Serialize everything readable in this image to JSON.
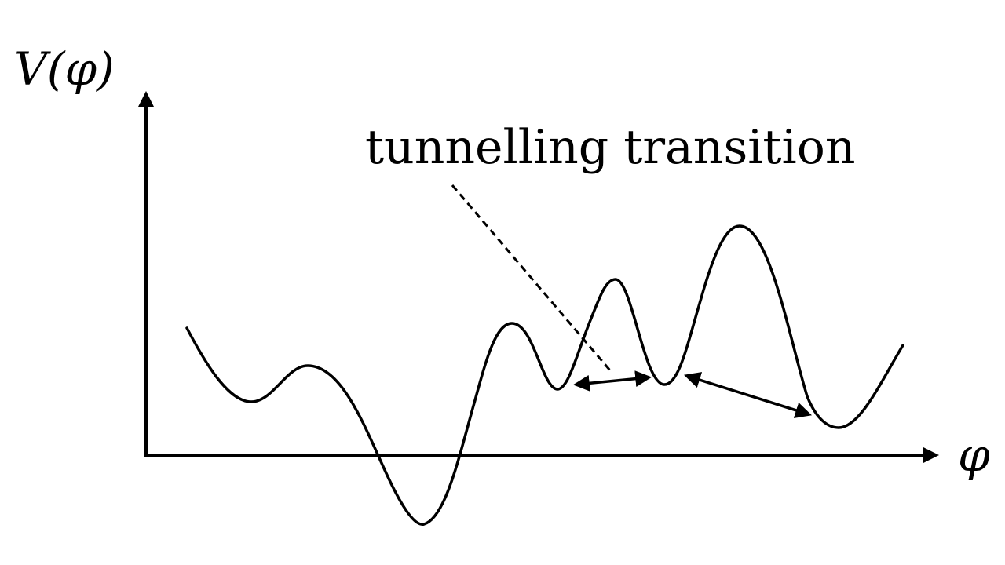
{
  "labels": {
    "y_axis": "V(φ)",
    "x_axis": "φ",
    "annotation": "tunnelling transition"
  },
  "colors": {
    "ink": "#000000",
    "background": "#ffffff"
  }
}
